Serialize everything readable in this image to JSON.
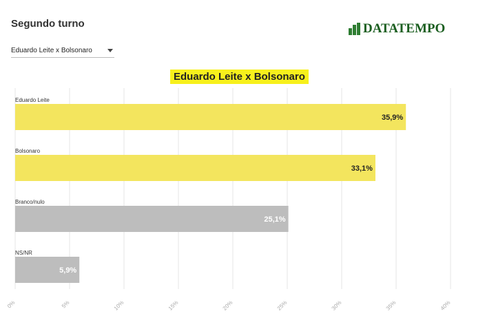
{
  "header": {
    "title": "Segundo turno",
    "logo": "DATATEMPO"
  },
  "dropdown": {
    "selected": "Eduardo Leite x Bolsonaro"
  },
  "chart_data": {
    "type": "barh",
    "title": "Eduardo Leite x Bolsonaro",
    "categories": [
      "Eduardo Leite",
      "Bolsonaro",
      "Branco/nulo",
      "NS/NR"
    ],
    "values": [
      35.9,
      33.1,
      25.1,
      5.9
    ],
    "value_labels": [
      "35,9%",
      "33,1%",
      "25,1%",
      "5,9%"
    ],
    "colors": [
      "#f3e55e",
      "#f3e55e",
      "#bdbdbd",
      "#bdbdbd"
    ],
    "label_colors": [
      "#222222",
      "#222222",
      "#ffffff",
      "#ffffff"
    ],
    "xlim": [
      0,
      40
    ],
    "xticks": [
      {
        "value": 0,
        "label": "0%"
      },
      {
        "value": 5,
        "label": "5%"
      },
      {
        "value": 10,
        "label": "10%"
      },
      {
        "value": 15,
        "label": "15%"
      },
      {
        "value": 20,
        "label": "20%"
      },
      {
        "value": 25,
        "label": "25%"
      },
      {
        "value": 30,
        "label": "30%"
      },
      {
        "value": 35,
        "label": "35%"
      },
      {
        "value": 40,
        "label": "40%"
      }
    ],
    "grid": true
  }
}
